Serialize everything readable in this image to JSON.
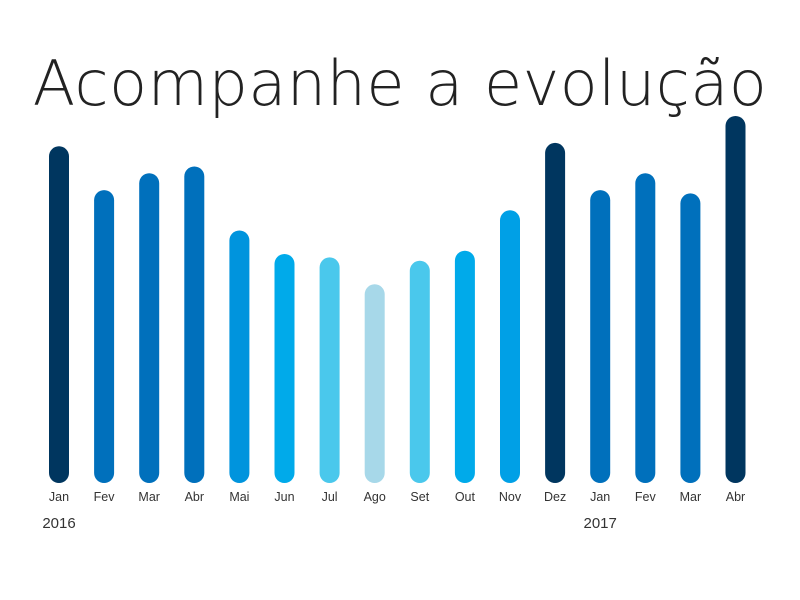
{
  "chart_data": {
    "type": "bar",
    "title": "Acompanhe a evolução",
    "categories": [
      "Jan",
      "Fev",
      "Mar",
      "Abr",
      "Mai",
      "Jun",
      "Jul",
      "Ago",
      "Set",
      "Out",
      "Nov",
      "Dez",
      "Jan",
      "Fev",
      "Mar",
      "Abr"
    ],
    "values": [
      100,
      87,
      92,
      94,
      75,
      68,
      67,
      59,
      66,
      69,
      81,
      101,
      87,
      92,
      86,
      109
    ],
    "colors": [
      "#00365f",
      "#0070bc",
      "#0070bc",
      "#0070bc",
      "#0094dd",
      "#00aaea",
      "#4ac8ec",
      "#a7d8e9",
      "#4ac8ec",
      "#00aaea",
      "#00a0e6",
      "#00365f",
      "#0070bc",
      "#0070bc",
      "#0070bc",
      "#00365f"
    ],
    "year_labels": [
      {
        "text": "2016",
        "index": 0
      },
      {
        "text": "2017",
        "index": 12
      }
    ],
    "ylim": [
      0,
      109
    ],
    "grid": false,
    "legend": "none"
  }
}
